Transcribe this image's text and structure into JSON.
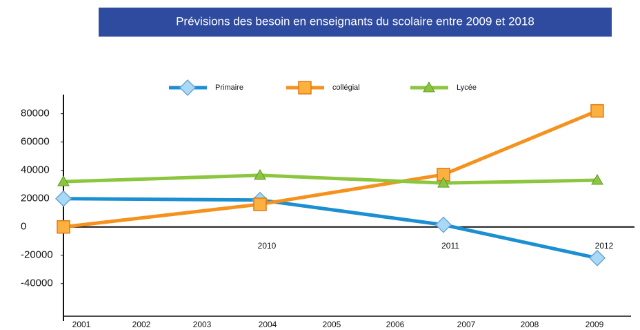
{
  "chart_data": {
    "type": "line",
    "title": "Prévisions des besoin en enseignants du scolaire entre 2009 et 2018",
    "categories": [
      null,
      "2010",
      "2011",
      "2012"
    ],
    "bottom_labels": [
      "2001",
      "2002",
      "2003",
      "2004",
      "2005",
      "2006",
      "2007",
      "2008",
      "2009"
    ],
    "series": [
      {
        "name": "Primaire",
        "color": "#1b8fd2",
        "marker": "diamond",
        "values": [
          20000,
          19000,
          1500,
          -22000
        ]
      },
      {
        "name": "collégial",
        "color": "#f5921e",
        "marker": "square",
        "values": [
          0,
          16000,
          37000,
          82000
        ]
      },
      {
        "name": "Lycée",
        "color": "#8cc63f",
        "marker": "triangle",
        "values": [
          32000,
          36500,
          31000,
          33000
        ]
      }
    ],
    "ylim": [
      -66000,
      94000
    ],
    "yticks": [
      80000,
      60000,
      40000,
      20000,
      0,
      -20000,
      -40000
    ],
    "legend": "top"
  }
}
